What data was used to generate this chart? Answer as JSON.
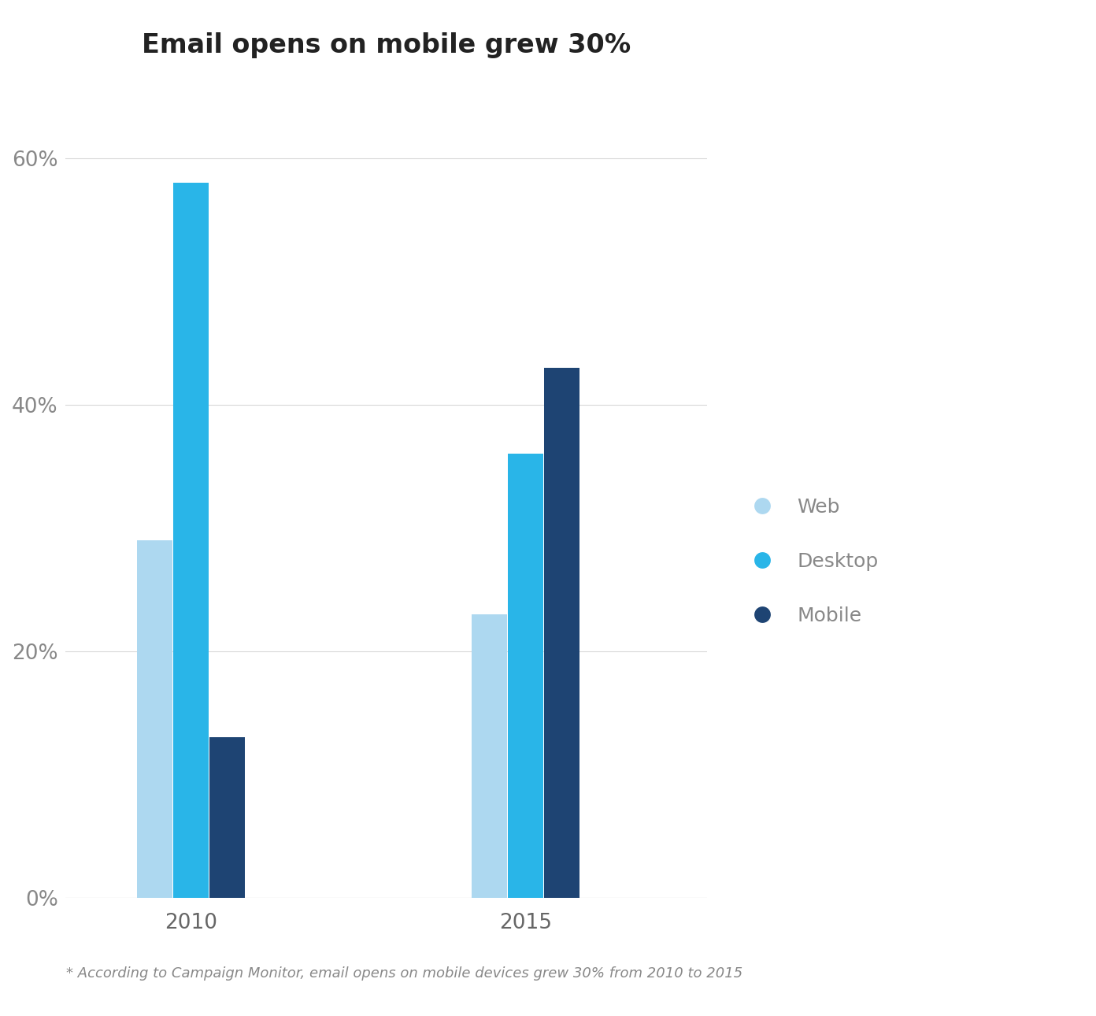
{
  "title": "Email opens on mobile grew 30%",
  "footnote": "* According to Campaign Monitor, email opens on mobile devices grew 30% from 2010 to 2015",
  "years": [
    "2010",
    "2015"
  ],
  "categories": [
    "Web",
    "Desktop",
    "Mobile"
  ],
  "values": {
    "2010": [
      29,
      58,
      13
    ],
    "2015": [
      23,
      36,
      43
    ]
  },
  "colors": {
    "Web": "#add8f0",
    "Desktop": "#29b5e8",
    "Mobile": "#1e4473"
  },
  "ylim": [
    0,
    65
  ],
  "yticks": [
    0,
    20,
    40,
    60
  ],
  "ytick_labels": [
    "0%",
    "20%",
    "40%",
    "60%"
  ],
  "background_color": "#ffffff",
  "title_fontsize": 24,
  "footnote_fontsize": 13,
  "bar_width": 0.13,
  "legend_fontsize": 18
}
